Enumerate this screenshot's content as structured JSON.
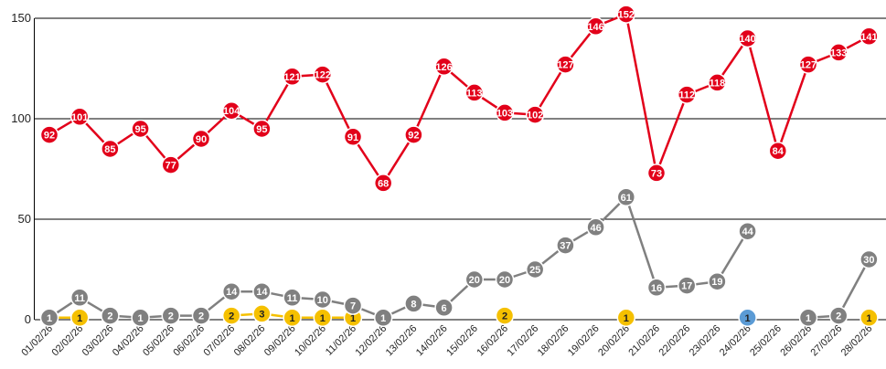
{
  "chart_data": {
    "type": "line",
    "title": "",
    "xlabel": "",
    "ylabel": "",
    "ylim": [
      0,
      150
    ],
    "yticks": [
      0,
      50,
      100,
      150
    ],
    "grid": true,
    "categories": [
      "01/02/26",
      "02/02/26",
      "03/02/26",
      "04/02/26",
      "05/02/26",
      "06/02/26",
      "07/02/26",
      "08/02/26",
      "09/02/26",
      "10/02/26",
      "11/02/26",
      "12/02/26",
      "13/02/26",
      "14/02/26",
      "15/02/26",
      "16/02/26",
      "17/02/26",
      "18/02/26",
      "19/02/26",
      "20/02/26",
      "21/02/26",
      "22/02/26",
      "23/02/26",
      "24/02/26",
      "25/02/26",
      "26/02/26",
      "27/02/26",
      "28/02/26"
    ],
    "series": [
      {
        "color": "#e2001a",
        "label_color": "#ffffff",
        "values": [
          92,
          101,
          85,
          95,
          77,
          90,
          104,
          95,
          121,
          122,
          91,
          68,
          92,
          126,
          113,
          103,
          102,
          127,
          146,
          152,
          73,
          112,
          118,
          140,
          84,
          127,
          133,
          141
        ]
      },
      {
        "color": "#808080",
        "label_color": "#ffffff",
        "values": [
          1,
          11,
          2,
          1,
          2,
          2,
          14,
          14,
          11,
          10,
          7,
          1,
          8,
          6,
          20,
          20,
          25,
          37,
          46,
          61,
          16,
          17,
          19,
          44,
          null,
          1,
          2,
          30
        ]
      },
      {
        "color": "#f5c000",
        "label_color": "#222222",
        "values": [
          1,
          1,
          null,
          1,
          null,
          null,
          2,
          3,
          1,
          1,
          1,
          null,
          null,
          null,
          null,
          2,
          null,
          null,
          null,
          1,
          null,
          null,
          null,
          null,
          null,
          null,
          null,
          1
        ]
      },
      {
        "color": "#70ad47",
        "label_color": "#222222",
        "values": [
          1,
          null,
          null,
          null,
          null,
          null,
          null,
          null,
          null,
          null,
          null,
          null,
          null,
          null,
          null,
          null,
          null,
          null,
          null,
          null,
          null,
          null,
          null,
          null,
          null,
          null,
          null,
          null
        ]
      },
      {
        "color": "#5b9bd5",
        "label_color": "#222222",
        "values": [
          null,
          null,
          null,
          null,
          null,
          null,
          null,
          null,
          null,
          null,
          null,
          null,
          null,
          null,
          null,
          null,
          null,
          null,
          null,
          null,
          null,
          null,
          null,
          1,
          null,
          null,
          null,
          null
        ]
      }
    ]
  }
}
